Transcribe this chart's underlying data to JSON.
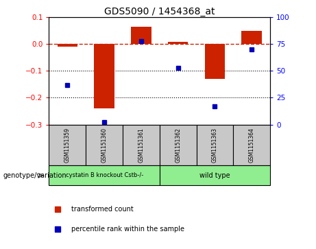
{
  "title": "GDS5090 / 1454368_at",
  "samples": [
    "GSM1151359",
    "GSM1151360",
    "GSM1151361",
    "GSM1151362",
    "GSM1151363",
    "GSM1151364"
  ],
  "red_bars": [
    -0.01,
    -0.24,
    0.065,
    0.01,
    -0.13,
    0.05
  ],
  "blue_dots": [
    37,
    2,
    78,
    53,
    17,
    70
  ],
  "ylim_left": [
    -0.3,
    0.1
  ],
  "ylim_right": [
    0,
    100
  ],
  "yticks_left": [
    -0.3,
    -0.2,
    -0.1,
    0.0,
    0.1
  ],
  "yticks_right": [
    0,
    25,
    50,
    75,
    100
  ],
  "group1_label": "cystatin B knockout Cstb-/-",
  "group2_label": "wild type",
  "group_label": "genotype/variation",
  "legend_red": "transformed count",
  "legend_blue": "percentile rank within the sample",
  "bar_color": "#CC2200",
  "dot_color": "#0000BB",
  "hline_color": "#CC2200",
  "gray_color": "#C8C8C8",
  "green_color": "#90EE90"
}
